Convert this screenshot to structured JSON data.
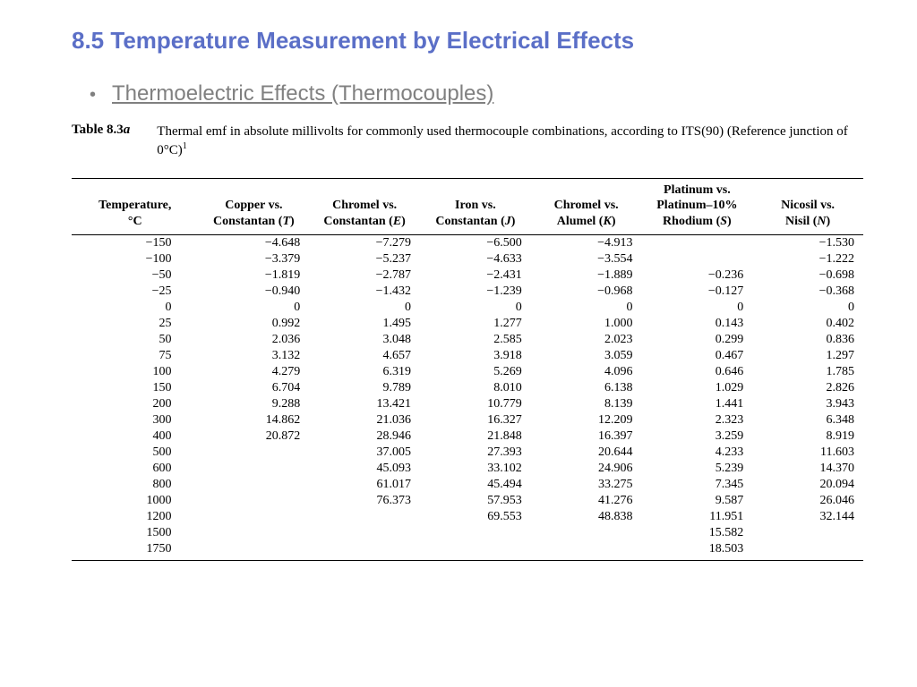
{
  "title": "8.5 Temperature Measurement by Electrical Effects",
  "bullet": "Thermoelectric Effects (Thermocouples)",
  "caption_label_prefix": "Table 8.3",
  "caption_label_suffix": "a",
  "caption_text": "Thermal emf in absolute millivolts for commonly used thermocouple combinations, according to ITS(90) (Reference junction of 0°C)",
  "caption_sup": "1",
  "headers": {
    "temp_l1": "Temperature,",
    "temp_l2": "°C",
    "t_l1": "Copper vs.",
    "t_l2": "Constantan (",
    "t_sym": "T",
    "e_l1": "Chromel vs.",
    "e_l2": "Constantan (",
    "e_sym": "E",
    "j_l1": "Iron vs.",
    "j_l2": "Constantan (",
    "j_sym": "J",
    "k_l1": "Chromel vs.",
    "k_l2": "Alumel (",
    "k_sym": "K",
    "s_l1": "Platinum vs.",
    "s_l2": "Platinum–10%",
    "s_l3": "Rhodium (",
    "s_sym": "S",
    "n_l1": "Nicosil vs.",
    "n_l2": "Nisil (",
    "n_sym": "N"
  },
  "rows": [
    {
      "temp": "−150",
      "t": "−4.648",
      "e": "−7.279",
      "j": "−6.500",
      "k": "−4.913",
      "s": "",
      "n": "−1.530"
    },
    {
      "temp": "−100",
      "t": "−3.379",
      "e": "−5.237",
      "j": "−4.633",
      "k": "−3.554",
      "s": "",
      "n": "−1.222"
    },
    {
      "temp": "−50",
      "t": "−1.819",
      "e": "−2.787",
      "j": "−2.431",
      "k": "−1.889",
      "s": "−0.236",
      "n": "−0.698"
    },
    {
      "temp": "−25",
      "t": "−0.940",
      "e": "−1.432",
      "j": "−1.239",
      "k": "−0.968",
      "s": "−0.127",
      "n": "−0.368"
    },
    {
      "temp": "0",
      "t": "0",
      "e": "0",
      "j": "0",
      "k": "0",
      "s": "0",
      "n": "0"
    },
    {
      "temp": "25",
      "t": "0.992",
      "e": "1.495",
      "j": "1.277",
      "k": "1.000",
      "s": "0.143",
      "n": "0.402"
    },
    {
      "temp": "50",
      "t": "2.036",
      "e": "3.048",
      "j": "2.585",
      "k": "2.023",
      "s": "0.299",
      "n": "0.836"
    },
    {
      "temp": "75",
      "t": "3.132",
      "e": "4.657",
      "j": "3.918",
      "k": "3.059",
      "s": "0.467",
      "n": "1.297"
    },
    {
      "temp": "100",
      "t": "4.279",
      "e": "6.319",
      "j": "5.269",
      "k": "4.096",
      "s": "0.646",
      "n": "1.785"
    },
    {
      "temp": "150",
      "t": "6.704",
      "e": "9.789",
      "j": "8.010",
      "k": "6.138",
      "s": "1.029",
      "n": "2.826"
    },
    {
      "temp": "200",
      "t": "9.288",
      "e": "13.421",
      "j": "10.779",
      "k": "8.139",
      "s": "1.441",
      "n": "3.943"
    },
    {
      "temp": "300",
      "t": "14.862",
      "e": "21.036",
      "j": "16.327",
      "k": "12.209",
      "s": "2.323",
      "n": "6.348"
    },
    {
      "temp": "400",
      "t": "20.872",
      "e": "28.946",
      "j": "21.848",
      "k": "16.397",
      "s": "3.259",
      "n": "8.919"
    },
    {
      "temp": "500",
      "t": "",
      "e": "37.005",
      "j": "27.393",
      "k": "20.644",
      "s": "4.233",
      "n": "11.603"
    },
    {
      "temp": "600",
      "t": "",
      "e": "45.093",
      "j": "33.102",
      "k": "24.906",
      "s": "5.239",
      "n": "14.370"
    },
    {
      "temp": "800",
      "t": "",
      "e": "61.017",
      "j": "45.494",
      "k": "33.275",
      "s": "7.345",
      "n": "20.094"
    },
    {
      "temp": "1000",
      "t": "",
      "e": "76.373",
      "j": "57.953",
      "k": "41.276",
      "s": "9.587",
      "n": "26.046"
    },
    {
      "temp": "1200",
      "t": "",
      "e": "",
      "j": "69.553",
      "k": "48.838",
      "s": "11.951",
      "n": "32.144"
    },
    {
      "temp": "1500",
      "t": "",
      "e": "",
      "j": "",
      "k": "",
      "s": "15.582",
      "n": ""
    },
    {
      "temp": "1750",
      "t": "",
      "e": "",
      "j": "",
      "k": "",
      "s": "18.503",
      "n": ""
    }
  ]
}
